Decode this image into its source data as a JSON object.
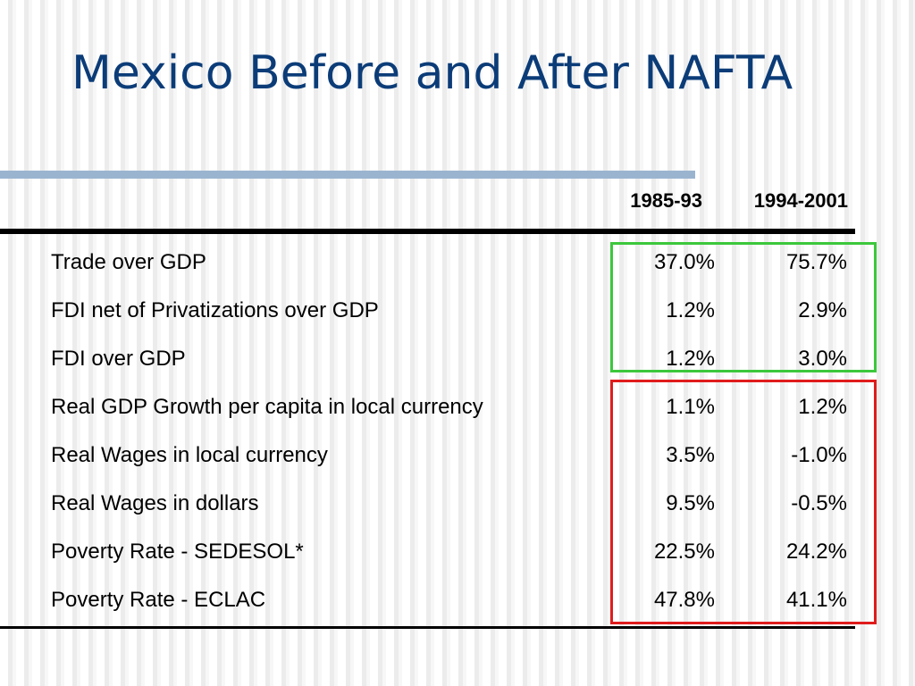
{
  "slide": {
    "title": "Mexico Before and After NAFTA"
  },
  "table": {
    "columns": [
      "1985-93",
      "1994-2001"
    ],
    "rows": [
      {
        "label": "Trade over GDP",
        "period1": "37.0%",
        "period2": "75.7%"
      },
      {
        "label": "FDI net of Privatizations over GDP",
        "period1": "1.2%",
        "period2": "2.9%"
      },
      {
        "label": "FDI over GDP",
        "period1": "1.2%",
        "period2": "3.0%"
      },
      {
        "label": "Real GDP Growth per capita in local currency",
        "period1": "1.1%",
        "period2": "1.2%"
      },
      {
        "label": "Real Wages in local currency",
        "period1": "3.5%",
        "period2": "-1.0%"
      },
      {
        "label": "Real Wages in dollars",
        "period1": "9.5%",
        "period2": "-0.5%"
      },
      {
        "label": "Poverty Rate - SEDESOL*",
        "period1": "22.5%",
        "period2": "24.2%"
      },
      {
        "label": "Poverty Rate - ECLAC",
        "period1": "47.8%",
        "period2": "41.1%"
      }
    ]
  },
  "highlights": {
    "green_color": "#3cc83c",
    "red_color": "#e01c1c"
  }
}
